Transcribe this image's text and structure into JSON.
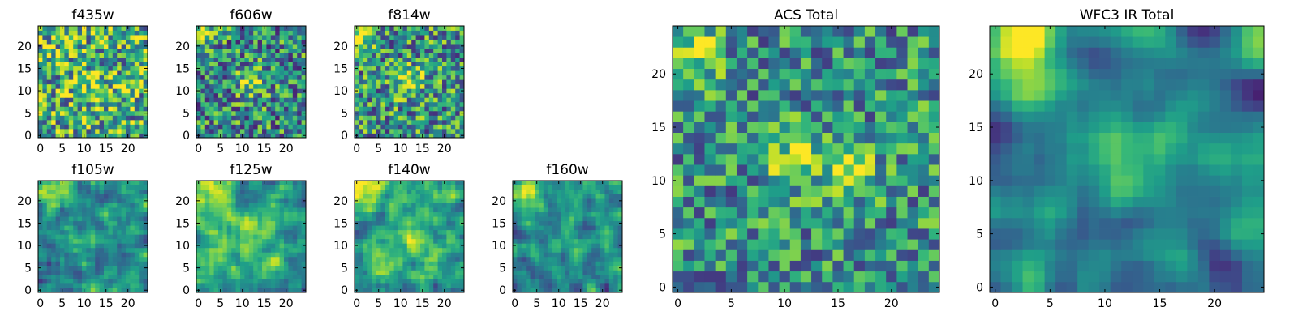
{
  "chart_data": {
    "type": "heatmap",
    "colormap": "viridis",
    "panels": [
      {
        "id": "f435w",
        "title": "f435w",
        "grid_size": 25,
        "xticks": [
          0,
          5,
          10,
          15,
          20
        ],
        "yticks": [
          0,
          5,
          10,
          15,
          20
        ],
        "seed": 11,
        "smooth": 0,
        "noise": 0.55,
        "base": 0.62,
        "blobs": [
          {
            "x": 12,
            "y": 11,
            "a": 0.15,
            "s": 3
          }
        ]
      },
      {
        "id": "f606w",
        "title": "f606w",
        "grid_size": 25,
        "xticks": [
          0,
          5,
          10,
          15,
          20
        ],
        "yticks": [
          0,
          5,
          10,
          15,
          20
        ],
        "seed": 23,
        "smooth": 0,
        "noise": 0.5,
        "base": 0.48,
        "blobs": [
          {
            "x": 12,
            "y": 12,
            "a": 0.38,
            "s": 2.2
          },
          {
            "x": 1,
            "y": 23,
            "a": 0.35,
            "s": 2
          }
        ]
      },
      {
        "id": "f814w",
        "title": "f814w",
        "grid_size": 25,
        "xticks": [
          0,
          5,
          10,
          15,
          20
        ],
        "yticks": [
          0,
          5,
          10,
          15,
          20
        ],
        "seed": 37,
        "smooth": 0,
        "noise": 0.5,
        "base": 0.52,
        "blobs": [
          {
            "x": 12,
            "y": 12,
            "a": 0.38,
            "s": 2.2
          },
          {
            "x": 1,
            "y": 22,
            "a": 0.38,
            "s": 2.2
          }
        ]
      },
      {
        "id": "f105w",
        "title": "f105w",
        "grid_size": 25,
        "xticks": [
          0,
          5,
          10,
          15,
          20
        ],
        "yticks": [
          0,
          5,
          10,
          15,
          20
        ],
        "seed": 41,
        "smooth": 1,
        "noise": 0.42,
        "base": 0.5,
        "blobs": [
          {
            "x": 2,
            "y": 23,
            "a": 0.4,
            "s": 3
          },
          {
            "x": 12,
            "y": 12,
            "a": 0.12,
            "s": 4
          }
        ]
      },
      {
        "id": "f125w",
        "title": "f125w",
        "grid_size": 25,
        "xticks": [
          0,
          5,
          10,
          15,
          20
        ],
        "yticks": [
          0,
          5,
          10,
          15,
          20
        ],
        "seed": 53,
        "smooth": 1,
        "noise": 0.42,
        "base": 0.55,
        "blobs": [
          {
            "x": 2,
            "y": 22,
            "a": 0.35,
            "s": 3
          },
          {
            "x": 12,
            "y": 12,
            "a": 0.18,
            "s": 4
          }
        ]
      },
      {
        "id": "f140w",
        "title": "f140w",
        "grid_size": 25,
        "xticks": [
          0,
          5,
          10,
          15,
          20
        ],
        "yticks": [
          0,
          5,
          10,
          15,
          20
        ],
        "seed": 67,
        "smooth": 1,
        "noise": 0.42,
        "base": 0.55,
        "blobs": [
          {
            "x": 2,
            "y": 22,
            "a": 0.4,
            "s": 3
          },
          {
            "x": 12,
            "y": 12,
            "a": 0.18,
            "s": 4
          }
        ]
      },
      {
        "id": "f160w",
        "title": "f160w",
        "grid_size": 25,
        "xticks": [
          0,
          5,
          10,
          15,
          20
        ],
        "yticks": [
          0,
          5,
          10,
          15,
          20
        ],
        "seed": 79,
        "smooth": 1,
        "noise": 0.42,
        "base": 0.45,
        "blobs": [
          {
            "x": 2,
            "y": 22,
            "a": 0.45,
            "s": 2.5
          },
          {
            "x": 12,
            "y": 12,
            "a": 0.12,
            "s": 4
          }
        ]
      },
      {
        "id": "acs_total",
        "title": "ACS Total",
        "grid_size": 25,
        "xticks": [
          0,
          5,
          10,
          15,
          20
        ],
        "yticks": [
          0,
          5,
          10,
          15,
          20
        ],
        "seed": 97,
        "smooth": 0,
        "noise": 0.42,
        "base": 0.5,
        "blobs": [
          {
            "x": 11,
            "y": 12,
            "a": 0.42,
            "s": 1.7
          },
          {
            "x": 16,
            "y": 11,
            "a": 0.32,
            "s": 1.7
          },
          {
            "x": 1,
            "y": 22,
            "a": 0.38,
            "s": 2
          }
        ]
      },
      {
        "id": "wfc3_ir_total",
        "title": "WFC3 IR Total",
        "grid_size": 25,
        "xticks": [
          0,
          5,
          10,
          15,
          20
        ],
        "yticks": [
          0,
          5,
          10,
          15,
          20
        ],
        "seed": 113,
        "smooth": 2,
        "noise": 0.45,
        "base": 0.45,
        "blobs": [
          {
            "x": 2,
            "y": 22,
            "a": 0.55,
            "s": 3
          },
          {
            "x": 12,
            "y": 12,
            "a": 0.2,
            "s": 3
          }
        ]
      }
    ]
  }
}
